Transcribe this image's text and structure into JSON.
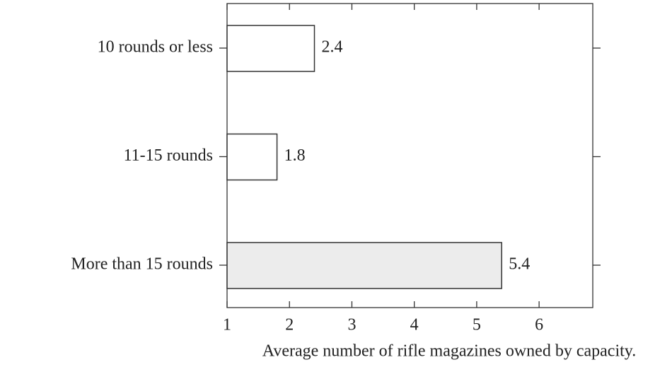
{
  "chart_data": {
    "type": "barh",
    "categories": [
      "10 rounds or less",
      "11-15 rounds",
      "More than 15 rounds"
    ],
    "values": [
      2.4,
      1.8,
      5.4
    ],
    "colors": [
      "#ffffff",
      "#ffffff",
      "#ececec"
    ],
    "xlabel": "Average number of rifle magazines owned by capacity.",
    "xlim": [
      1,
      6.86
    ],
    "xticks": [
      1,
      2,
      3,
      4,
      5,
      6
    ]
  }
}
